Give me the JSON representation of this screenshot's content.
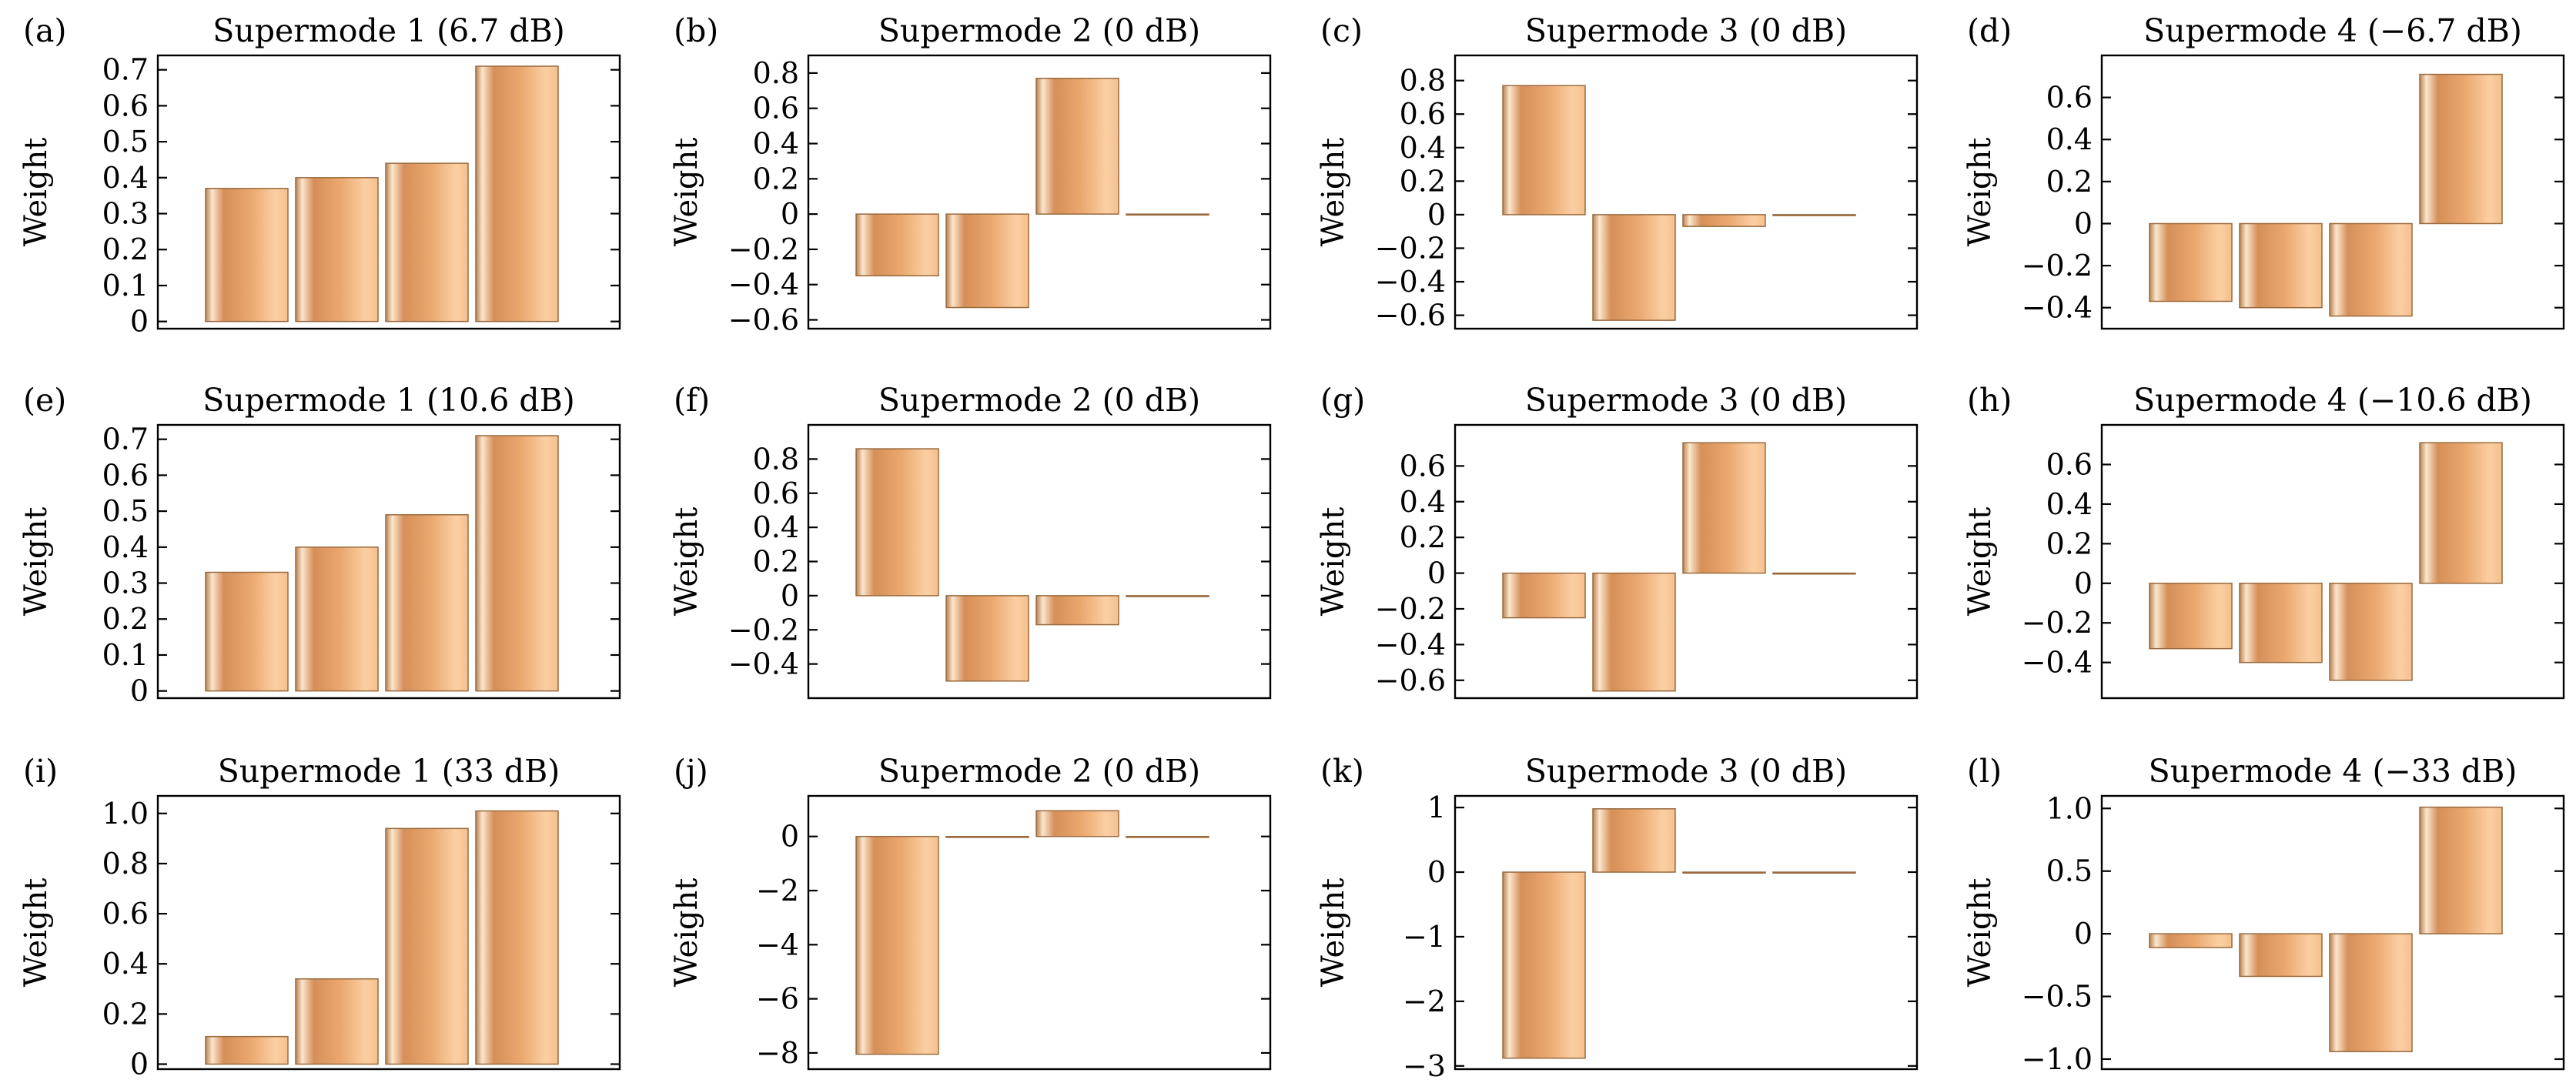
{
  "chart_data": [
    {
      "type": "bar",
      "label": "(a)",
      "title": "Supermode 1 (6.7 dB)",
      "ylabel": "Weight",
      "values": [
        0.37,
        0.4,
        0.44,
        0.71
      ],
      "ylim": [
        -0.02,
        0.74
      ],
      "yticks": [
        0,
        0.1,
        0.2,
        0.3,
        0.4,
        0.5,
        0.6,
        0.7
      ],
      "ytick_labels": [
        "0",
        "0.1",
        "0.2",
        "0.3",
        "0.4",
        "0.5",
        "0.6",
        "0.7"
      ]
    },
    {
      "type": "bar",
      "label": "(b)",
      "title": "Supermode 2 (0 dB)",
      "ylabel": "Weight",
      "values": [
        -0.35,
        -0.53,
        0.77,
        0.0
      ],
      "ylim": [
        -0.65,
        0.9
      ],
      "yticks": [
        -0.6,
        -0.4,
        -0.2,
        0,
        0.2,
        0.4,
        0.6,
        0.8
      ],
      "ytick_labels": [
        "−0.6",
        "−0.4",
        "−0.2",
        "0",
        "0.2",
        "0.4",
        "0.6",
        "0.8"
      ]
    },
    {
      "type": "bar",
      "label": "(c)",
      "title": "Supermode 3 (0 dB)",
      "ylabel": "Weight",
      "values": [
        0.77,
        -0.63,
        -0.07,
        0.0
      ],
      "ylim": [
        -0.68,
        0.95
      ],
      "yticks": [
        -0.6,
        -0.4,
        -0.2,
        0,
        0.2,
        0.4,
        0.6,
        0.8
      ],
      "ytick_labels": [
        "−0.6",
        "−0.4",
        "−0.2",
        "0",
        "0.2",
        "0.4",
        "0.6",
        "0.8"
      ]
    },
    {
      "type": "bar",
      "label": "(d)",
      "title": "Supermode 4 (−6.7 dB)",
      "ylabel": "Weight",
      "values": [
        -0.37,
        -0.4,
        -0.44,
        0.71
      ],
      "ylim": [
        -0.5,
        0.8
      ],
      "yticks": [
        -0.4,
        -0.2,
        0,
        0.2,
        0.4,
        0.6
      ],
      "ytick_labels": [
        "−0.4",
        "−0.2",
        "0",
        "0.2",
        "0.4",
        "0.6"
      ]
    },
    {
      "type": "bar",
      "label": "(e)",
      "title": "Supermode 1 (10.6 dB)",
      "ylabel": "Weight",
      "values": [
        0.33,
        0.4,
        0.49,
        0.71
      ],
      "ylim": [
        -0.02,
        0.74
      ],
      "yticks": [
        0,
        0.1,
        0.2,
        0.3,
        0.4,
        0.5,
        0.6,
        0.7
      ],
      "ytick_labels": [
        "0",
        "0.1",
        "0.2",
        "0.3",
        "0.4",
        "0.5",
        "0.6",
        "0.7"
      ]
    },
    {
      "type": "bar",
      "label": "(f)",
      "title": "Supermode 2 (0 dB)",
      "ylabel": "Weight",
      "values": [
        0.86,
        -0.5,
        -0.17,
        0.0
      ],
      "ylim": [
        -0.6,
        1.0
      ],
      "yticks": [
        -0.4,
        -0.2,
        0,
        0.2,
        0.4,
        0.6,
        0.8
      ],
      "ytick_labels": [
        "−0.4",
        "−0.2",
        "0",
        "0.2",
        "0.4",
        "0.6",
        "0.8"
      ]
    },
    {
      "type": "bar",
      "label": "(g)",
      "title": "Supermode 3 (0 dB)",
      "ylabel": "Weight",
      "values": [
        -0.25,
        -0.66,
        0.73,
        0.0
      ],
      "ylim": [
        -0.7,
        0.83
      ],
      "yticks": [
        -0.6,
        -0.4,
        -0.2,
        0,
        0.2,
        0.4,
        0.6
      ],
      "ytick_labels": [
        "−0.6",
        "−0.4",
        "−0.2",
        "0",
        "0.2",
        "0.4",
        "0.6"
      ]
    },
    {
      "type": "bar",
      "label": "(h)",
      "title": "Supermode 4 (−10.6 dB)",
      "ylabel": "Weight",
      "values": [
        -0.33,
        -0.4,
        -0.49,
        0.71
      ],
      "ylim": [
        -0.58,
        0.8
      ],
      "yticks": [
        -0.4,
        -0.2,
        0,
        0.2,
        0.4,
        0.6
      ],
      "ytick_labels": [
        "−0.4",
        "−0.2",
        "0",
        "0.2",
        "0.4",
        "0.6"
      ]
    },
    {
      "type": "bar",
      "label": "(i)",
      "title": "Supermode 1 (33 dB)",
      "ylabel": "Weight",
      "values": [
        0.11,
        0.34,
        0.94,
        1.01
      ],
      "ylim": [
        -0.02,
        1.07
      ],
      "yticks": [
        0,
        0.2,
        0.4,
        0.6,
        0.8,
        1.0
      ],
      "ytick_labels": [
        "0",
        "0.2",
        "0.4",
        "0.6",
        "0.8",
        "1.0"
      ]
    },
    {
      "type": "bar",
      "label": "(j)",
      "title": "Supermode 2 (0 dB)",
      "ylabel": "Weight",
      "values": [
        -8.05,
        0.0,
        0.95,
        0.0
      ],
      "ylim": [
        -8.6,
        1.5
      ],
      "yticks": [
        -8,
        -6,
        -4,
        -2,
        0
      ],
      "ytick_labels": [
        "−8",
        "−6",
        "−4",
        "−2",
        "0"
      ]
    },
    {
      "type": "bar",
      "label": "(k)",
      "title": "Supermode 3 (0 dB)",
      "ylabel": "Weight",
      "values": [
        -2.88,
        0.98,
        0.0,
        0.0
      ],
      "ylim": [
        -3.05,
        1.18
      ],
      "yticks": [
        -3,
        -2,
        -1,
        0,
        1
      ],
      "ytick_labels": [
        "−3",
        "−2",
        "−1",
        "0",
        "1"
      ]
    },
    {
      "type": "bar",
      "label": "(l)",
      "title": "Supermode 4 (−33 dB)",
      "ylabel": "Weight",
      "values": [
        -0.11,
        -0.34,
        -0.94,
        1.01
      ],
      "ylim": [
        -1.08,
        1.1
      ],
      "yticks": [
        -1.0,
        -0.5,
        0,
        0.5,
        1.0
      ],
      "ytick_labels": [
        "−1.0",
        "−0.5",
        "0",
        "0.5",
        "1.0"
      ]
    }
  ],
  "colors": {
    "bar_edge_dark": "#b9824f",
    "bar_mid": "#e8a56f",
    "bar_highlight": "#fcd1a6",
    "frame": "#000000"
  }
}
